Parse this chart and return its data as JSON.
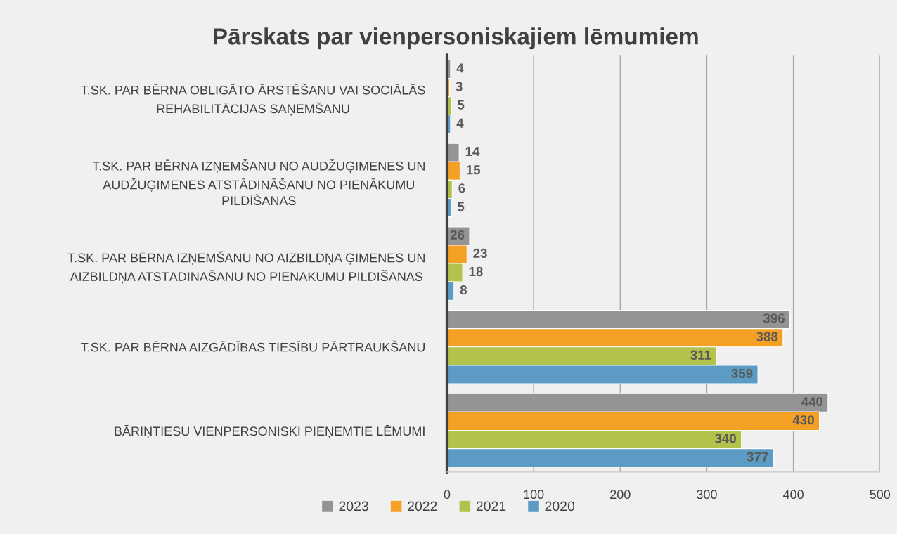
{
  "chart_data": {
    "type": "bar",
    "orientation": "horizontal",
    "title": "Pārskats par vienpersoniskajiem lēmumiem",
    "categories": [
      "T.SK. PAR BĒRNA OBLIGĀTO ĀRSTĒŠANU VAI SOCIĀLĀS\nREHABILITĀCIJAS SAŅEMŠANU",
      "T.SK. PAR BĒRNA IZŅEMŠANU NO AUDŽUĢIMENES UN\nAUDŽUĢIMENES ATSTĀDINĀŠANU NO PIENĀKUMU\nPILDĪŠANAS",
      "T.SK. PAR BĒRNA IZŅEMŠANU NO AIZBILDŅA ĢIMENES UN\nAIZBILDŅA ATSTĀDINĀŠANU NO PIENĀKUMU PILDĪŠANAS",
      "T.SK. PAR BĒRNA AIZGĀDĪBAS TIESĪBU PĀRTRAUKŠANU",
      "BĀRIŅTIESU VIENPERSONISKI PIEŅEMTIE LĒMUMI"
    ],
    "series": [
      {
        "name": "2023",
        "color": "#949494",
        "values": [
          4,
          14,
          26,
          396,
          440
        ]
      },
      {
        "name": "2022",
        "color": "#f4a024",
        "values": [
          3,
          15,
          23,
          388,
          430
        ]
      },
      {
        "name": "2021",
        "color": "#b2c24a",
        "values": [
          5,
          6,
          18,
          311,
          340
        ]
      },
      {
        "name": "2020",
        "color": "#5b9bc4",
        "values": [
          4,
          5,
          8,
          359,
          377
        ]
      }
    ],
    "xlim": [
      0,
      500
    ],
    "xticks": [
      0,
      100,
      200,
      300,
      400,
      500
    ],
    "grid": "x",
    "legend": "bottom",
    "data_labels": true
  }
}
